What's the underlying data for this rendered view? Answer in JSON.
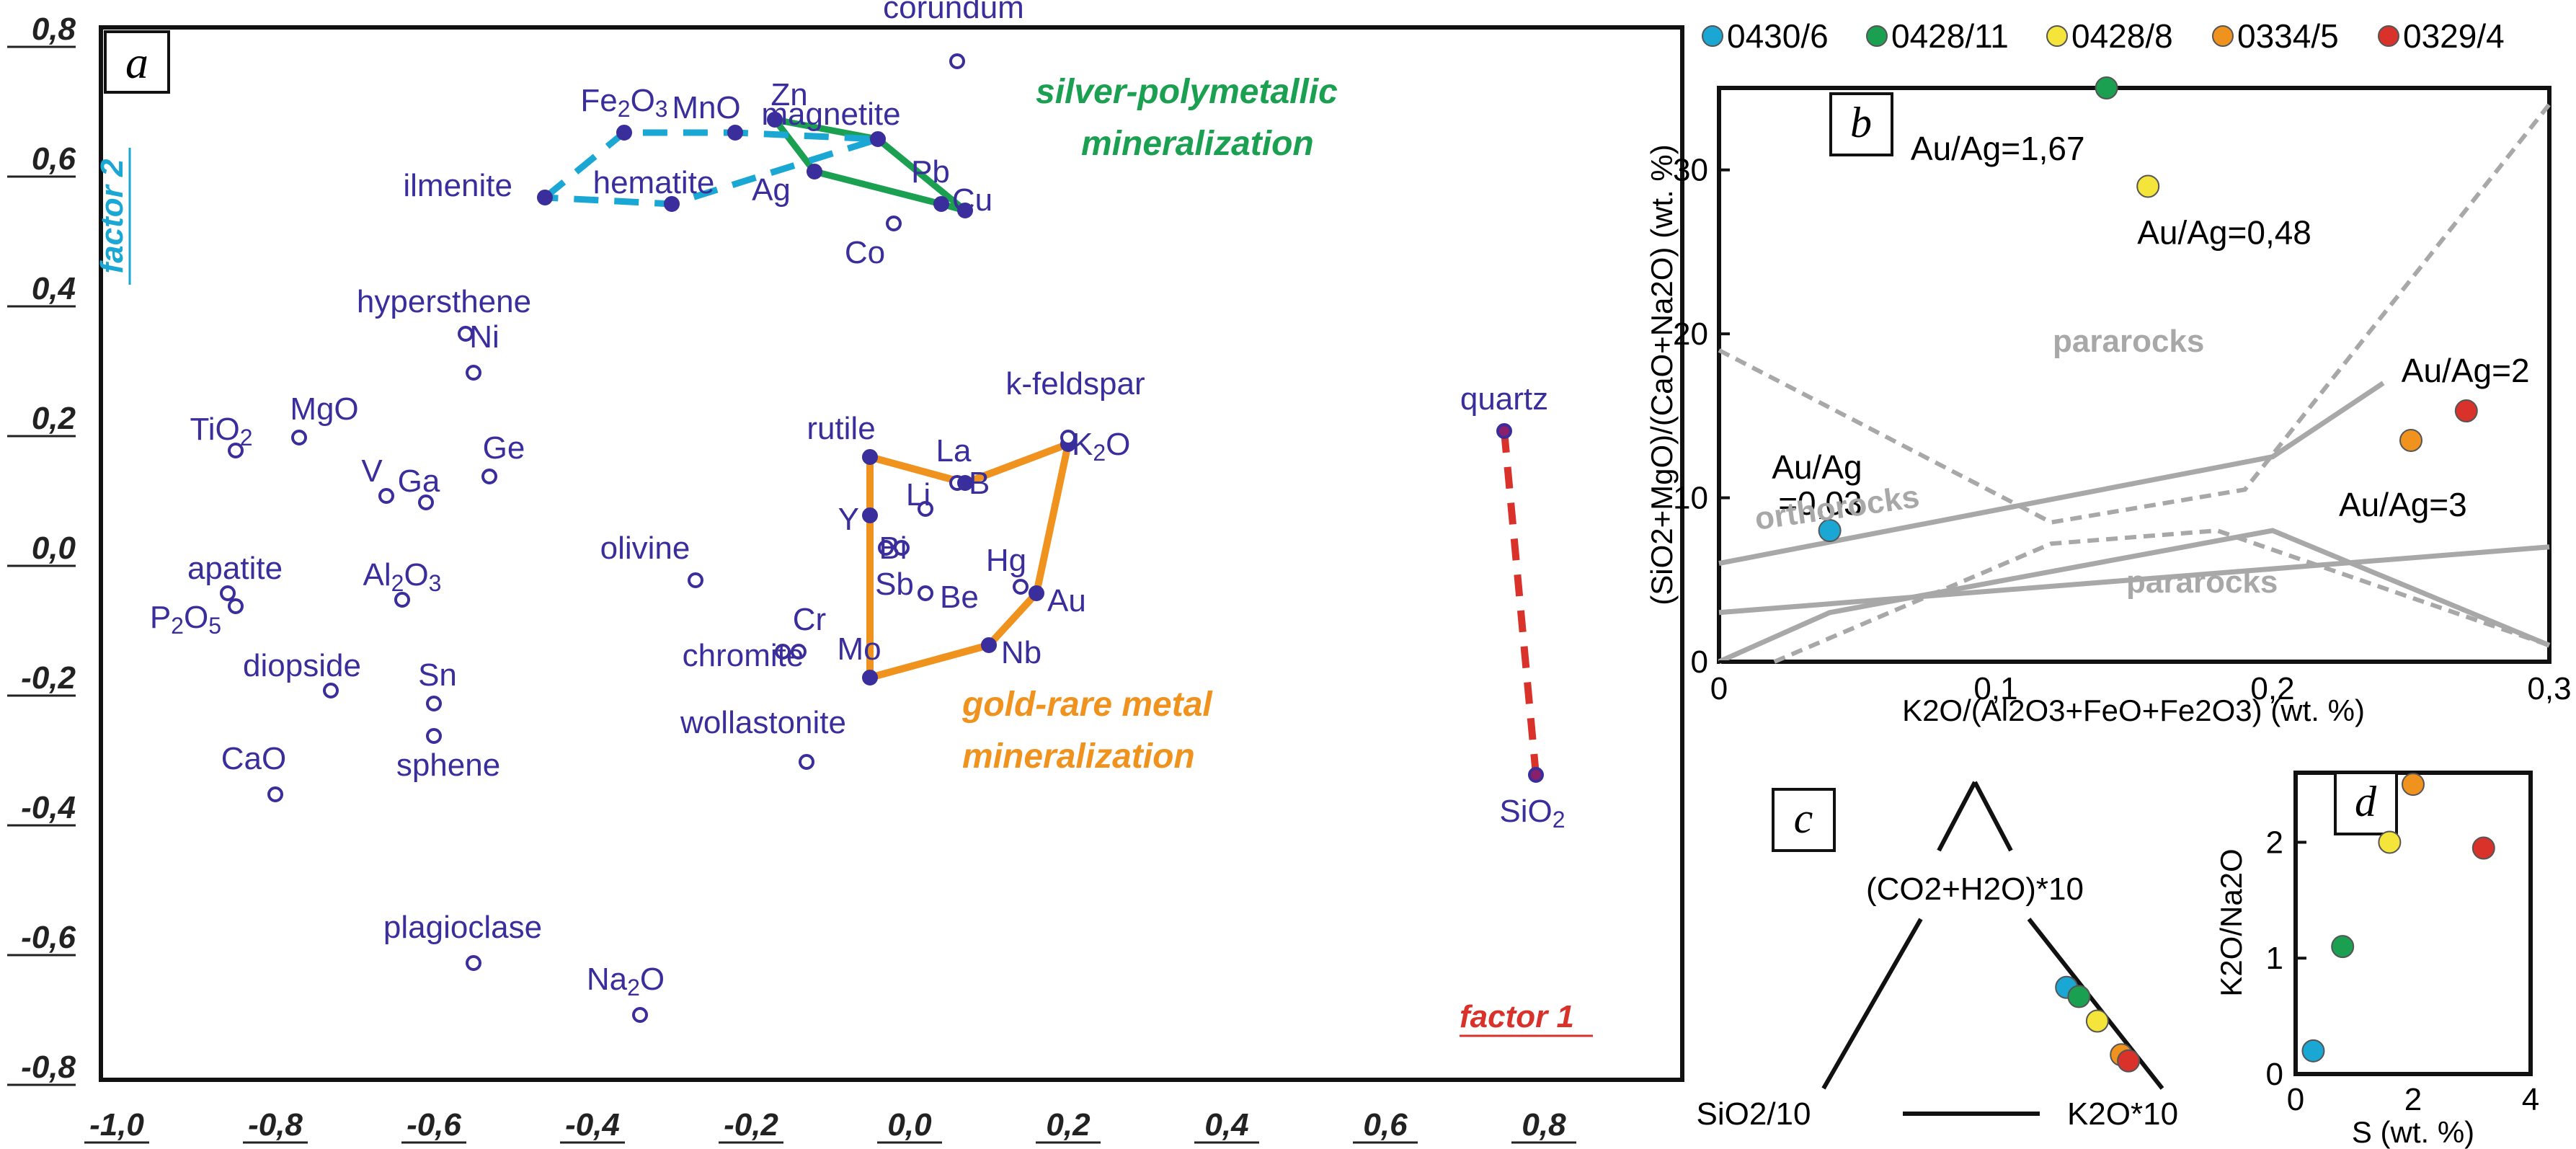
{
  "chart_data": [
    {
      "panel": "a",
      "type": "scatter",
      "xlabel": "factor 1",
      "ylabel": "factor 2",
      "xlim": [
        -1.0,
        0.9
      ],
      "ylim": [
        -0.8,
        0.8
      ],
      "x_ticks": [
        "-1,0",
        "-0,8",
        "-0,6",
        "-0,4",
        "-0,2",
        "0,0",
        "0,2",
        "0,4",
        "0,6",
        "0,8"
      ],
      "y_ticks": [
        "0,8",
        "0,6",
        "0,4",
        "0,2",
        "0,0",
        "-0,2",
        "-0,4",
        "-0,6",
        "-0,8"
      ],
      "points": [
        {
          "name": "corundum",
          "x": 0.06,
          "y": 0.75
        },
        {
          "name": "Fe2O3",
          "x": -0.36,
          "y": 0.64
        },
        {
          "name": "MnO",
          "x": -0.22,
          "y": 0.64
        },
        {
          "name": "Zn",
          "x": -0.17,
          "y": 0.66
        },
        {
          "name": "magnetite",
          "x": -0.04,
          "y": 0.63
        },
        {
          "name": "ilmenite",
          "x": -0.46,
          "y": 0.54
        },
        {
          "name": "hematite",
          "x": -0.3,
          "y": 0.53
        },
        {
          "name": "Ag",
          "x": -0.12,
          "y": 0.58
        },
        {
          "name": "Pb",
          "x": 0.04,
          "y": 0.53
        },
        {
          "name": "Cu",
          "x": 0.07,
          "y": 0.52
        },
        {
          "name": "Co",
          "x": -0.02,
          "y": 0.5
        },
        {
          "name": "hypersthene",
          "x": -0.56,
          "y": 0.33
        },
        {
          "name": "Ni",
          "x": -0.55,
          "y": 0.27
        },
        {
          "name": "TiO2",
          "x": -0.85,
          "y": 0.15
        },
        {
          "name": "MgO",
          "x": -0.77,
          "y": 0.17
        },
        {
          "name": "V",
          "x": -0.66,
          "y": 0.08
        },
        {
          "name": "Ga",
          "x": -0.61,
          "y": 0.07
        },
        {
          "name": "Ge",
          "x": -0.53,
          "y": 0.11
        },
        {
          "name": "rutile",
          "x": -0.05,
          "y": 0.14
        },
        {
          "name": "La",
          "x": 0.06,
          "y": 0.1
        },
        {
          "name": "B",
          "x": 0.07,
          "y": 0.1
        },
        {
          "name": "K2O",
          "x": 0.2,
          "y": 0.16
        },
        {
          "name": "k-feldspar",
          "x": 0.2,
          "y": 0.17
        },
        {
          "name": "Li",
          "x": 0.02,
          "y": 0.06
        },
        {
          "name": "Y",
          "x": -0.05,
          "y": 0.05
        },
        {
          "name": "Bi",
          "x": -0.03,
          "y": 0.0
        },
        {
          "name": "Sb",
          "x": -0.01,
          "y": 0.0
        },
        {
          "name": "Be",
          "x": 0.02,
          "y": -0.07
        },
        {
          "name": "Hg",
          "x": 0.14,
          "y": -0.06
        },
        {
          "name": "Au",
          "x": 0.16,
          "y": -0.07
        },
        {
          "name": "Mo",
          "x": -0.05,
          "y": -0.2
        },
        {
          "name": "Nb",
          "x": 0.1,
          "y": -0.15
        },
        {
          "name": "olivine",
          "x": -0.27,
          "y": -0.05
        },
        {
          "name": "Cr",
          "x": -0.14,
          "y": -0.16
        },
        {
          "name": "chromite",
          "x": -0.16,
          "y": -0.16
        },
        {
          "name": "wollastonite",
          "x": -0.13,
          "y": -0.33
        },
        {
          "name": "apatite",
          "x": -0.86,
          "y": -0.07
        },
        {
          "name": "P2O5",
          "x": -0.85,
          "y": -0.09
        },
        {
          "name": "Al2O3",
          "x": -0.64,
          "y": -0.08
        },
        {
          "name": "diopside",
          "x": -0.73,
          "y": -0.22
        },
        {
          "name": "Sn",
          "x": -0.6,
          "y": -0.24
        },
        {
          "name": "sphene",
          "x": -0.6,
          "y": -0.29
        },
        {
          "name": "CaO",
          "x": -0.8,
          "y": -0.38
        },
        {
          "name": "plagioclase",
          "x": -0.55,
          "y": -0.64
        },
        {
          "name": "Na2O",
          "x": -0.34,
          "y": -0.72
        },
        {
          "name": "quartz",
          "x": 0.75,
          "y": 0.18
        },
        {
          "name": "SiO2",
          "x": 0.79,
          "y": -0.35
        }
      ],
      "groups": [
        {
          "label": "silver-polymetallic mineralization",
          "members": [
            "Zn",
            "magnetite",
            "Cu",
            "Pb",
            "Ag"
          ]
        },
        {
          "label": "gold-rare metal mineralization",
          "members": [
            "rutile",
            "B",
            "K2O",
            "Au",
            "Nb",
            "Mo",
            "Y"
          ]
        },
        {
          "label": "",
          "members": [
            "ilmenite",
            "Fe2O3",
            "MnO",
            "magnetite",
            "hematite"
          ]
        },
        {
          "label": "",
          "members": [
            "quartz",
            "SiO2"
          ]
        }
      ],
      "colors": {
        "points": "#3a2e9c",
        "silver": "#1aa050",
        "gold": "#f0931e",
        "iron": "#1aa7d3",
        "quartz": "#d9322a",
        "factor1": "#d9322a",
        "factor2": "#1aa7d3"
      }
    },
    {
      "panel": "b",
      "type": "scatter",
      "xlabel": "K2O/(Al2O3+FeO+Fe2O3) (wt. %)",
      "ylabel": "(SiO2+MgO)/(CaO+Na2O) (wt. %)",
      "xlim": [
        0,
        0.3
      ],
      "ylim": [
        0,
        35
      ],
      "x_ticks": [
        "0",
        "0,1",
        "0,2",
        "0,3"
      ],
      "y_ticks": [
        "0",
        "10",
        "20",
        "30"
      ],
      "series": [
        {
          "name": "0430/6",
          "x": 0.04,
          "y": 8,
          "label": "Au/Ag =0,03"
        },
        {
          "name": "0428/11",
          "x": 0.14,
          "y": 35,
          "label": "Au/Ag=1,67"
        },
        {
          "name": "0428/8",
          "x": 0.155,
          "y": 29,
          "label": "Au/Ag=0,48"
        },
        {
          "name": "0334/5",
          "x": 0.25,
          "y": 13.5,
          "label": "Au/Ag=3"
        },
        {
          "name": "0329/4",
          "x": 0.27,
          "y": 15.3,
          "label": "Au/Ag=2"
        }
      ],
      "field_labels": [
        "pararocks",
        "orthorocks",
        "pararocks"
      ]
    },
    {
      "panel": "c",
      "type": "ternary",
      "vertices": {
        "top": "(CO2+H2O)*10",
        "left": "SiO2/10",
        "right": "K2O*10"
      },
      "series": [
        {
          "name": "0430/6",
          "top": 0.33,
          "left": 0.1,
          "right": 0.57
        },
        {
          "name": "0428/11",
          "top": 0.3,
          "left": 0.08,
          "right": 0.62
        },
        {
          "name": "0428/8",
          "top": 0.22,
          "left": 0.07,
          "right": 0.71
        },
        {
          "name": "0334/5",
          "top": 0.11,
          "left": 0.06,
          "right": 0.83
        },
        {
          "name": "0329/4",
          "top": 0.09,
          "left": 0.05,
          "right": 0.86
        }
      ]
    },
    {
      "panel": "d",
      "type": "scatter",
      "xlabel": "S (wt. %)",
      "ylabel": "K2O/Na2O",
      "xlim": [
        0,
        4
      ],
      "ylim": [
        0,
        2.6
      ],
      "x_ticks": [
        "0",
        "2",
        "4"
      ],
      "y_ticks": [
        "0",
        "1",
        "2"
      ],
      "series": [
        {
          "name": "0430/6",
          "x": 0.3,
          "y": 0.2
        },
        {
          "name": "0428/11",
          "x": 0.8,
          "y": 1.1
        },
        {
          "name": "0428/8",
          "x": 1.6,
          "y": 2.0
        },
        {
          "name": "0334/5",
          "x": 2.0,
          "y": 2.5
        },
        {
          "name": "0329/4",
          "x": 3.2,
          "y": 1.95
        }
      ]
    }
  ],
  "legend": [
    {
      "name": "0430/6",
      "color": "#1aa7d3"
    },
    {
      "name": "0428/11",
      "color": "#1aa050"
    },
    {
      "name": "0428/8",
      "color": "#f5e53a"
    },
    {
      "name": "0334/5",
      "color": "#f0931e"
    },
    {
      "name": "0329/4",
      "color": "#d9322a"
    }
  ],
  "panel_letters": {
    "a": "a",
    "b": "b",
    "c": "c",
    "d": "d"
  },
  "annotations": {
    "silver_line1": "silver-polymetallic",
    "silver_line2": "mineralization",
    "gold_line1": "gold-rare metal",
    "gold_line2": "mineralization",
    "factor1": "factor 1",
    "factor2": "factor 2"
  }
}
